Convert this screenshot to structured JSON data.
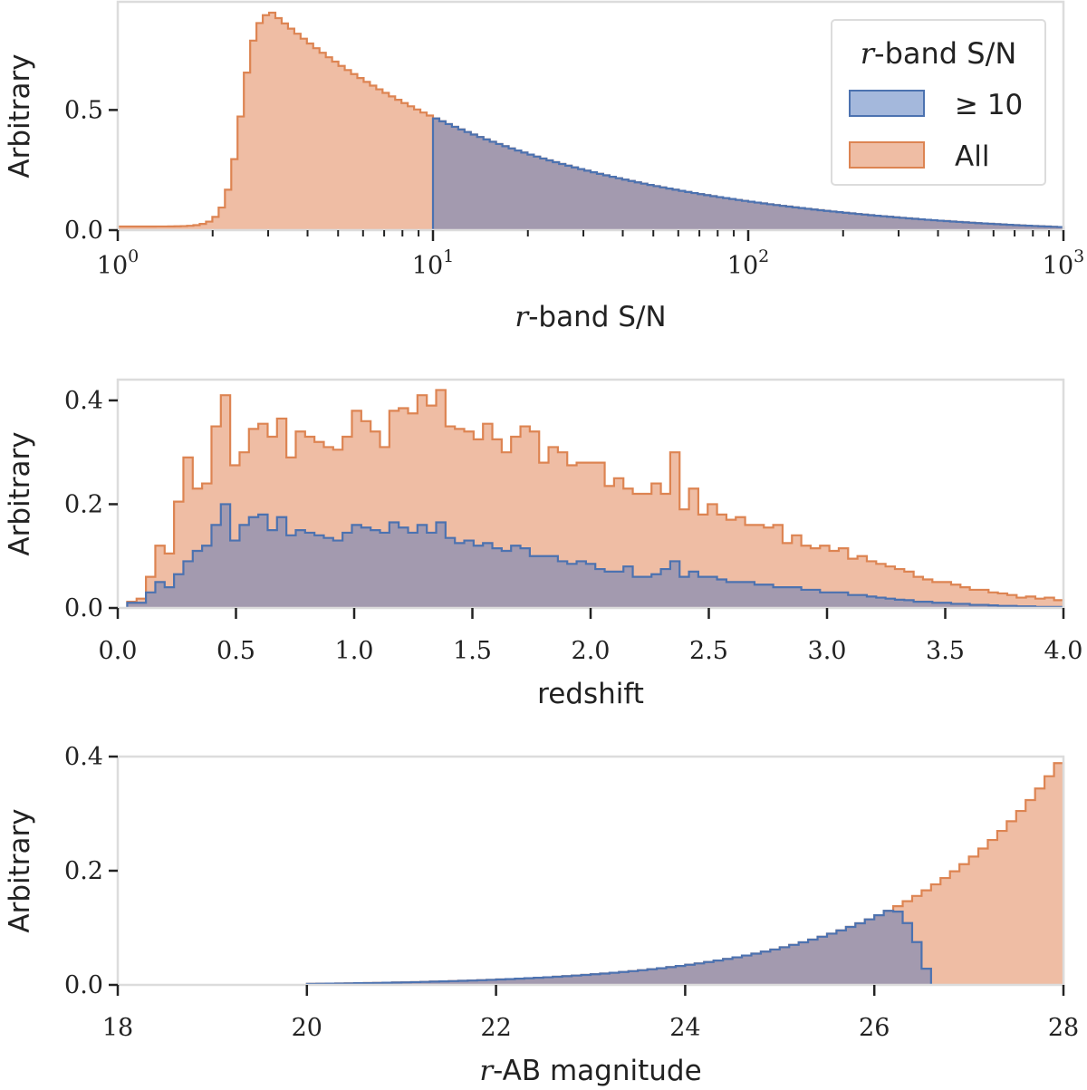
{
  "colors": {
    "all_fill": "#efbda4",
    "all_edge": "#dd8452",
    "sn_fill": "#a39aaf",
    "sn_edge": "#4c72b0",
    "sn_legend_fill": "#a4b8dc",
    "frame": "#dcdcdc",
    "text": "#222222"
  },
  "legend": {
    "title_italic": "r",
    "title_rest": "-band S/N",
    "entries": [
      {
        "label": "≥ 10",
        "series": "sn"
      },
      {
        "label": "All",
        "series": "all"
      }
    ]
  },
  "chart_data": [
    {
      "id": "snr",
      "type": "histogram",
      "xscale": "log",
      "xlim": [
        1,
        1000
      ],
      "ylim": [
        0,
        0.95
      ],
      "ylabel": "Arbitrary",
      "xlabel_italic": "r",
      "xlabel_rest": "-band S/N",
      "yticks": [
        {
          "value": 0.0,
          "label": "0.0"
        },
        {
          "value": 0.5,
          "label": "0.5"
        }
      ],
      "xticks": [
        {
          "value": 1,
          "base": "10",
          "exp": "0"
        },
        {
          "value": 10,
          "base": "10",
          "exp": "1"
        },
        {
          "value": 100,
          "base": "10",
          "exp": "2"
        },
        {
          "value": 1000,
          "base": "10",
          "exp": "3"
        }
      ],
      "series": [
        {
          "name": "All",
          "key": "all",
          "kind": "snr_all"
        },
        {
          "name": "≥ 10",
          "key": "sn",
          "kind": "snr_cut",
          "threshold": 10
        }
      ]
    },
    {
      "id": "redshift",
      "type": "histogram",
      "xscale": "linear",
      "xlim": [
        0,
        4
      ],
      "ylim": [
        0,
        0.44
      ],
      "ylabel": "Arbitrary",
      "xlabel": "redshift",
      "yticks": [
        {
          "value": 0.0,
          "label": "0.0"
        },
        {
          "value": 0.2,
          "label": "0.2"
        },
        {
          "value": 0.4,
          "label": "0.4"
        }
      ],
      "xticks": [
        {
          "value": 0.0,
          "label": "0.0"
        },
        {
          "value": 0.5,
          "label": "0.5"
        },
        {
          "value": 1.0,
          "label": "1.0"
        },
        {
          "value": 1.5,
          "label": "1.5"
        },
        {
          "value": 2.0,
          "label": "2.0"
        },
        {
          "value": 2.5,
          "label": "2.5"
        },
        {
          "value": 3.0,
          "label": "3.0"
        },
        {
          "value": 3.5,
          "label": "3.5"
        },
        {
          "value": 4.0,
          "label": "4.0"
        }
      ],
      "bin_start": 0.04,
      "bin_width": 0.0396,
      "series": [
        {
          "name": "All",
          "key": "all",
          "values": [
            0.012,
            0.018,
            0.06,
            0.12,
            0.105,
            0.205,
            0.29,
            0.23,
            0.24,
            0.35,
            0.41,
            0.275,
            0.3,
            0.345,
            0.355,
            0.33,
            0.365,
            0.29,
            0.34,
            0.33,
            0.32,
            0.31,
            0.305,
            0.33,
            0.38,
            0.36,
            0.34,
            0.31,
            0.38,
            0.385,
            0.375,
            0.41,
            0.39,
            0.42,
            0.35,
            0.345,
            0.34,
            0.325,
            0.355,
            0.325,
            0.3,
            0.33,
            0.35,
            0.34,
            0.28,
            0.31,
            0.3,
            0.275,
            0.28,
            0.28,
            0.28,
            0.235,
            0.25,
            0.23,
            0.22,
            0.22,
            0.24,
            0.22,
            0.3,
            0.19,
            0.23,
            0.18,
            0.2,
            0.18,
            0.17,
            0.175,
            0.16,
            0.16,
            0.155,
            0.16,
            0.125,
            0.14,
            0.12,
            0.115,
            0.12,
            0.11,
            0.115,
            0.095,
            0.1,
            0.09,
            0.085,
            0.08,
            0.075,
            0.07,
            0.06,
            0.055,
            0.05,
            0.05,
            0.045,
            0.04,
            0.035,
            0.035,
            0.03,
            0.028,
            0.025,
            0.02,
            0.022,
            0.018,
            0.02,
            0.015
          ]
        },
        {
          "name": "≥ 10",
          "key": "sn",
          "values": [
            0.01,
            0.01,
            0.03,
            0.05,
            0.04,
            0.065,
            0.09,
            0.11,
            0.12,
            0.16,
            0.2,
            0.13,
            0.16,
            0.175,
            0.18,
            0.15,
            0.175,
            0.14,
            0.15,
            0.145,
            0.14,
            0.135,
            0.13,
            0.145,
            0.16,
            0.155,
            0.15,
            0.145,
            0.165,
            0.155,
            0.145,
            0.16,
            0.145,
            0.165,
            0.135,
            0.125,
            0.13,
            0.12,
            0.125,
            0.115,
            0.11,
            0.12,
            0.115,
            0.1,
            0.1,
            0.1,
            0.09,
            0.085,
            0.09,
            0.085,
            0.075,
            0.07,
            0.07,
            0.08,
            0.06,
            0.06,
            0.065,
            0.075,
            0.09,
            0.06,
            0.07,
            0.06,
            0.06,
            0.055,
            0.05,
            0.05,
            0.05,
            0.045,
            0.045,
            0.04,
            0.04,
            0.04,
            0.035,
            0.035,
            0.03,
            0.03,
            0.03,
            0.025,
            0.025,
            0.022,
            0.02,
            0.018,
            0.016,
            0.015,
            0.012,
            0.012,
            0.01,
            0.01,
            0.008,
            0.008,
            0.006,
            0.006,
            0.005,
            0.004,
            0.004,
            0.003,
            0.003,
            0.002,
            0.002,
            0.002
          ]
        }
      ]
    },
    {
      "id": "magnitude",
      "type": "histogram",
      "xscale": "linear",
      "xlim": [
        18,
        28
      ],
      "ylim": [
        0,
        0.4
      ],
      "ylabel": "Arbitrary",
      "xlabel_italic": "r",
      "xlabel_rest": "-AB magnitude",
      "yticks": [
        {
          "value": 0.0,
          "label": "0.0"
        },
        {
          "value": 0.2,
          "label": "0.2"
        },
        {
          "value": 0.4,
          "label": "0.4"
        }
      ],
      "xticks": [
        {
          "value": 18,
          "label": "18"
        },
        {
          "value": 20,
          "label": "20"
        },
        {
          "value": 22,
          "label": "22"
        },
        {
          "value": 24,
          "label": "24"
        },
        {
          "value": 26,
          "label": "26"
        },
        {
          "value": 28,
          "label": "28"
        }
      ],
      "bin_start": 20.0,
      "bin_width": 0.1,
      "series": [
        {
          "name": "All",
          "key": "all",
          "kind": "mag_all",
          "peak": 0.39
        },
        {
          "name": "≥ 10",
          "key": "sn",
          "kind": "mag_cut",
          "cutoff": 26.6,
          "peak": 0.135
        }
      ]
    }
  ]
}
